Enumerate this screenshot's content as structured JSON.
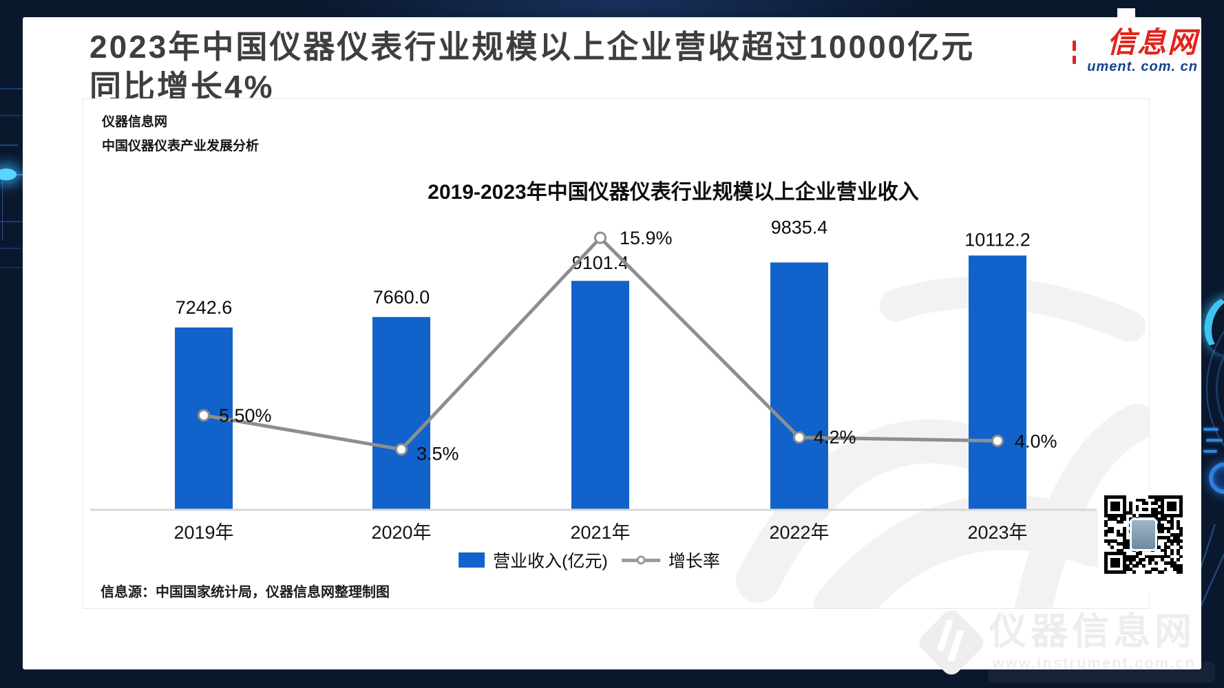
{
  "header": {
    "title_line1": "2023年中国仪器仪表行业规模以上企业营收超过10000亿元",
    "title_line2": "同比增长4%"
  },
  "logo": {
    "text_cn": "信息网",
    "text_en": "ument. com. cn"
  },
  "panel": {
    "brand": "仪器信息网",
    "subtitle": "中国仪器仪表产业发展分析",
    "source": "信息源：中国国家统计局，仪器信息网整理制图"
  },
  "watermark": {
    "cn": "仪器信息网",
    "url": "www.instrument.com.cn"
  },
  "colors": {
    "bar_blue": "#1163cb",
    "line_gray": "#8e8e8e",
    "axis_gray": "#d8d8d8",
    "logo_red": "#e1251c",
    "logo_blue": "#16418e",
    "background_navy": "#0a182e"
  },
  "chart_data": {
    "type": "bar",
    "title": "2019-2023年中国仪器仪表行业规模以上企业营业收入",
    "categories": [
      "2019年",
      "2020年",
      "2021年",
      "2022年",
      "2023年"
    ],
    "series": [
      {
        "name": "营业收入(亿元)",
        "type": "bar",
        "values": [
          7242.6,
          7660.0,
          9101.4,
          9835.4,
          10112.2
        ],
        "labels": [
          "7242.6",
          "7660.0",
          "9101.4",
          "9835.4",
          "10112.2"
        ],
        "color": "#1163cb"
      },
      {
        "name": "增长率",
        "type": "line",
        "values": [
          5.5,
          3.5,
          15.9,
          4.2,
          4.0
        ],
        "labels": [
          "5.50%",
          "3.5%",
          "15.9%",
          "4.2%",
          "4.0%"
        ],
        "color": "#8e8e8e"
      }
    ],
    "legend": [
      "营业收入(亿元)",
      "增长率"
    ],
    "legend_position": "bottom",
    "grid": false,
    "y_axis_visible": false,
    "baseline": 0
  }
}
